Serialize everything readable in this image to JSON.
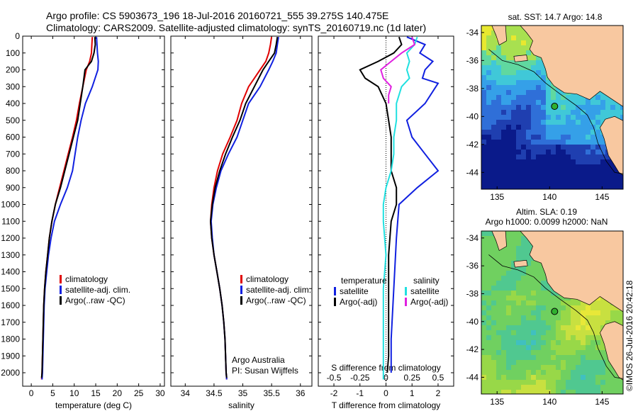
{
  "header": {
    "line1": "Argo profile: CS 5903673_196 18-Jul-2016 20160721_555 39.275S 140.475E",
    "line2": "Climatology: CARS2009. Satellite-adjusted climatology: synTS_20160719.nc (1d later)"
  },
  "chart_data": [
    {
      "type": "line",
      "xlabel": "temperature (deg C)",
      "xlim": [
        -2,
        31
      ],
      "ylim": [
        0,
        2080
      ],
      "y_reversed": true,
      "xticks": [
        0,
        5,
        10,
        15,
        20,
        25,
        30
      ],
      "yticks": [
        0,
        100,
        200,
        300,
        400,
        500,
        600,
        700,
        800,
        900,
        1000,
        1100,
        1200,
        1300,
        1400,
        1500,
        1600,
        1700,
        1800,
        1900,
        2000
      ],
      "legend": [
        "climatology",
        "satellite-adj. clim.",
        "Argo(..raw -QC)"
      ],
      "series": [
        {
          "name": "climatology",
          "color": "#e00000",
          "points": [
            [
              14.2,
              5
            ],
            [
              14.1,
              50
            ],
            [
              14.0,
              100
            ],
            [
              13.6,
              150
            ],
            [
              12.8,
              200
            ],
            [
              12.0,
              300
            ],
            [
              11.2,
              400
            ],
            [
              10.5,
              500
            ],
            [
              9.6,
              600
            ],
            [
              8.6,
              700
            ],
            [
              7.6,
              800
            ],
            [
              6.6,
              900
            ],
            [
              5.6,
              1000
            ],
            [
              4.8,
              1100
            ],
            [
              4.2,
              1200
            ],
            [
              3.8,
              1300
            ],
            [
              3.4,
              1400
            ],
            [
              3.1,
              1500
            ],
            [
              2.9,
              1600
            ],
            [
              2.8,
              1700
            ],
            [
              2.7,
              1800
            ],
            [
              2.6,
              1900
            ],
            [
              2.5,
              2000
            ],
            [
              2.4,
              2040
            ]
          ]
        },
        {
          "name": "satellite-adj. clim.",
          "color": "#1020e0",
          "points": [
            [
              15.2,
              5
            ],
            [
              15.3,
              50
            ],
            [
              15.4,
              100
            ],
            [
              15.6,
              150
            ],
            [
              15.5,
              200
            ],
            [
              14.2,
              300
            ],
            [
              12.6,
              400
            ],
            [
              11.6,
              500
            ],
            [
              10.8,
              600
            ],
            [
              10.2,
              700
            ],
            [
              9.6,
              800
            ],
            [
              8.4,
              900
            ],
            [
              6.8,
              1000
            ],
            [
              5.4,
              1100
            ],
            [
              4.6,
              1200
            ],
            [
              4.0,
              1300
            ],
            [
              3.6,
              1400
            ],
            [
              3.2,
              1500
            ],
            [
              3.0,
              1600
            ],
            [
              2.9,
              1700
            ],
            [
              2.8,
              1800
            ],
            [
              2.7,
              1900
            ],
            [
              2.6,
              2000
            ],
            [
              2.5,
              2040
            ]
          ]
        },
        {
          "name": "Argo(..raw -QC)",
          "color": "#000000",
          "points": [
            [
              14.8,
              5
            ],
            [
              14.9,
              50
            ],
            [
              14.6,
              100
            ],
            [
              14.0,
              150
            ],
            [
              12.5,
              200
            ],
            [
              12.0,
              300
            ],
            [
              11.4,
              400
            ],
            [
              10.8,
              500
            ],
            [
              9.8,
              600
            ],
            [
              8.8,
              700
            ],
            [
              7.8,
              800
            ],
            [
              6.8,
              900
            ],
            [
              5.6,
              1000
            ],
            [
              4.8,
              1100
            ],
            [
              4.2,
              1200
            ],
            [
              3.8,
              1300
            ],
            [
              3.4,
              1400
            ],
            [
              3.1,
              1500
            ],
            [
              2.9,
              1600
            ],
            [
              2.8,
              1700
            ],
            [
              2.7,
              1800
            ],
            [
              2.6,
              1900
            ],
            [
              2.5,
              2000
            ],
            [
              2.4,
              2030
            ]
          ]
        }
      ]
    },
    {
      "type": "line",
      "xlabel": "salinity",
      "xlim": [
        33.75,
        36.2
      ],
      "ylim": [
        0,
        2080
      ],
      "y_reversed": true,
      "xticks": [
        34,
        34.5,
        35,
        35.5,
        36
      ],
      "legend": [
        "climatology",
        "satellite-adj. clim.",
        "Argo(..raw -QC)"
      ],
      "annotations": [
        "Argo Australia",
        "PI: Susan Wijffels"
      ],
      "series": [
        {
          "name": "climatology",
          "color": "#e00000",
          "points": [
            [
              35.5,
              5
            ],
            [
              35.48,
              50
            ],
            [
              35.45,
              100
            ],
            [
              35.4,
              150
            ],
            [
              35.3,
              200
            ],
            [
              35.2,
              250
            ],
            [
              35.1,
              300
            ],
            [
              34.98,
              400
            ],
            [
              34.9,
              500
            ],
            [
              34.78,
              600
            ],
            [
              34.65,
              700
            ],
            [
              34.56,
              800
            ],
            [
              34.5,
              900
            ],
            [
              34.46,
              1000
            ],
            [
              34.44,
              1100
            ],
            [
              34.46,
              1200
            ],
            [
              34.5,
              1300
            ],
            [
              34.55,
              1400
            ],
            [
              34.6,
              1500
            ],
            [
              34.64,
              1600
            ],
            [
              34.67,
              1700
            ],
            [
              34.69,
              1800
            ],
            [
              34.7,
              1900
            ],
            [
              34.71,
              2000
            ],
            [
              34.72,
              2040
            ]
          ]
        },
        {
          "name": "satellite-adj. clim.",
          "color": "#1020e0",
          "points": [
            [
              35.62,
              5
            ],
            [
              35.6,
              50
            ],
            [
              35.58,
              100
            ],
            [
              35.52,
              150
            ],
            [
              35.45,
              200
            ],
            [
              35.3,
              300
            ],
            [
              35.1,
              400
            ],
            [
              35.0,
              500
            ],
            [
              34.9,
              600
            ],
            [
              34.75,
              700
            ],
            [
              34.62,
              800
            ],
            [
              34.54,
              900
            ],
            [
              34.48,
              1000
            ],
            [
              34.45,
              1100
            ],
            [
              34.47,
              1200
            ],
            [
              34.5,
              1300
            ],
            [
              34.55,
              1400
            ],
            [
              34.6,
              1500
            ],
            [
              34.64,
              1600
            ],
            [
              34.67,
              1700
            ],
            [
              34.69,
              1800
            ],
            [
              34.7,
              1900
            ],
            [
              34.71,
              2000
            ],
            [
              34.72,
              2040
            ]
          ]
        },
        {
          "name": "Argo(..raw -QC)",
          "color": "#000000",
          "points": [
            [
              35.6,
              5
            ],
            [
              35.58,
              50
            ],
            [
              35.55,
              100
            ],
            [
              35.45,
              150
            ],
            [
              35.35,
              200
            ],
            [
              35.2,
              300
            ],
            [
              35.05,
              400
            ],
            [
              34.95,
              500
            ],
            [
              34.82,
              600
            ],
            [
              34.7,
              700
            ],
            [
              34.6,
              800
            ],
            [
              34.52,
              900
            ],
            [
              34.47,
              1000
            ],
            [
              34.44,
              1100
            ],
            [
              34.46,
              1200
            ],
            [
              34.5,
              1300
            ],
            [
              34.55,
              1400
            ],
            [
              34.6,
              1500
            ],
            [
              34.64,
              1600
            ],
            [
              34.67,
              1700
            ],
            [
              34.69,
              1800
            ],
            [
              34.7,
              1900
            ],
            [
              34.71,
              2000
            ],
            [
              34.72,
              2030
            ]
          ]
        }
      ]
    },
    {
      "type": "line",
      "xlabel": "T difference from climatology",
      "xlabel2": "S difference from climatology",
      "xlim": [
        -2.6,
        2.6
      ],
      "ylim": [
        0,
        2080
      ],
      "y_reversed": true,
      "xticks": [
        -2,
        -1,
        0,
        1,
        2
      ],
      "xticks2": [
        -0.5,
        -0.25,
        0,
        0.25,
        0.5
      ],
      "xticks2_labels": [
        "-0.5",
        "-0.25",
        "0",
        "0.25",
        "0.5"
      ],
      "legend_temperature_title": "temperature",
      "legend_salinity_title": "salinity",
      "legend": [
        "satellite",
        "Argo(-adj)",
        "satellite",
        "Argo(-adj)"
      ],
      "series": [
        {
          "name": "satellite",
          "color": "#1020e0",
          "points": [
            [
              0.8,
              5
            ],
            [
              1.5,
              50
            ],
            [
              1.3,
              100
            ],
            [
              1.8,
              150
            ],
            [
              1.5,
              200
            ],
            [
              1.4,
              250
            ],
            [
              2.0,
              280
            ],
            [
              1.5,
              400
            ],
            [
              0.8,
              500
            ],
            [
              1.0,
              600
            ],
            [
              1.5,
              700
            ],
            [
              2.0,
              800
            ],
            [
              1.2,
              900
            ],
            [
              0.5,
              1000
            ],
            [
              0.4,
              1200
            ],
            [
              0.3,
              1500
            ],
            [
              0.2,
              1800
            ],
            [
              0.2,
              2000
            ]
          ]
        },
        {
          "name": "Argo(-adj)",
          "color": "#000000",
          "points": [
            [
              0.5,
              5
            ],
            [
              0.6,
              50
            ],
            [
              0.3,
              100
            ],
            [
              -0.3,
              150
            ],
            [
              -1.0,
              200
            ],
            [
              -0.8,
              250
            ],
            [
              -0.3,
              300
            ],
            [
              0.0,
              400
            ],
            [
              0.1,
              500
            ],
            [
              0.2,
              600
            ],
            [
              0.2,
              700
            ],
            [
              0.2,
              800
            ],
            [
              0.4,
              900
            ],
            [
              0.4,
              1000
            ],
            [
              0.2,
              1100
            ],
            [
              0.1,
              1300
            ],
            [
              0.1,
              1600
            ],
            [
              0.1,
              1900
            ],
            [
              0.05,
              2000
            ]
          ]
        },
        {
          "name": "satellite",
          "color": "#20e0e0",
          "points": [
            [
              1.2,
              5
            ],
            [
              1.1,
              50
            ],
            [
              0.8,
              100
            ],
            [
              0.9,
              150
            ],
            [
              0.8,
              200
            ],
            [
              0.9,
              250
            ],
            [
              0.6,
              300
            ],
            [
              0.4,
              400
            ],
            [
              0.4,
              500
            ],
            [
              0.3,
              600
            ],
            [
              0.3,
              700
            ],
            [
              0.2,
              800
            ],
            [
              0.0,
              900
            ],
            [
              -0.1,
              1000
            ],
            [
              -0.1,
              1100
            ],
            [
              0.0,
              1300
            ],
            [
              -0.1,
              1500
            ],
            [
              -0.1,
              1800
            ],
            [
              -0.1,
              2040
            ]
          ]
        },
        {
          "name": "Argo(-adj)",
          "color": "#e020e0",
          "points": [
            [
              1.0,
              5
            ],
            [
              1.1,
              50
            ],
            [
              0.6,
              100
            ],
            [
              0.2,
              150
            ],
            [
              -0.2,
              200
            ],
            [
              -0.1,
              250
            ],
            [
              0.2,
              300
            ],
            [
              0.1,
              350
            ],
            [
              0.1,
              400
            ]
          ]
        }
      ]
    },
    {
      "type": "heatmap",
      "title": "sat. SST: 14.7  Argo: 14.8",
      "xlim": [
        133.5,
        147
      ],
      "ylim": [
        -45.2,
        -33.5
      ],
      "xticks": [
        135,
        140,
        145
      ],
      "yticks": [
        -34,
        -36,
        -38,
        -40,
        -42,
        -44
      ],
      "marker": [
        140.475,
        -39.275
      ]
    },
    {
      "type": "heatmap",
      "title": "Altim. SLA: 0.19",
      "title2": "Argo h1000: 0.0099  h2000: NaN",
      "xlim": [
        133.5,
        147
      ],
      "ylim": [
        -45.2,
        -33.5
      ],
      "xticks": [
        135,
        140,
        145
      ],
      "yticks": [
        -34,
        -36,
        -38,
        -40,
        -42,
        -44
      ],
      "marker": [
        140.475,
        -39.275
      ]
    }
  ],
  "footer": {
    "credit": "©IMOS 26-Jul-2016 20:42:18"
  }
}
